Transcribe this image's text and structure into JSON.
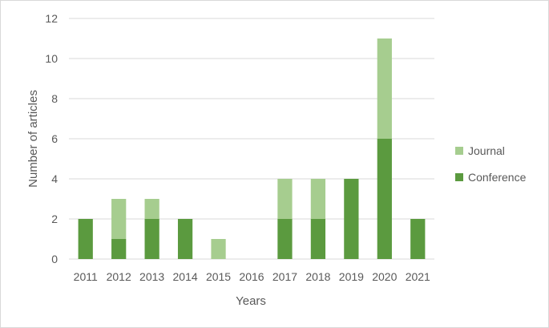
{
  "chart_data": {
    "type": "bar",
    "stacked": true,
    "categories": [
      "2011",
      "2012",
      "2013",
      "2014",
      "2015",
      "2016",
      "2017",
      "2018",
      "2019",
      "2020",
      "2021"
    ],
    "series": [
      {
        "name": "Conference",
        "color": "#5b9a3f",
        "values": [
          2,
          1,
          2,
          2,
          0,
          0,
          2,
          2,
          4,
          6,
          2
        ]
      },
      {
        "name": "Journal",
        "color": "#a6cd8f",
        "values": [
          0,
          2,
          1,
          0,
          1,
          0,
          2,
          2,
          0,
          5,
          0
        ]
      }
    ],
    "legend_order": [
      "Journal",
      "Conference"
    ],
    "title": "",
    "xlabel": "Years",
    "ylabel": "Number of articles",
    "ylim": [
      0,
      12
    ],
    "yticks": [
      "0",
      "2",
      "4",
      "6",
      "8",
      "10",
      "12"
    ],
    "grid": true,
    "legend_position": "right"
  }
}
